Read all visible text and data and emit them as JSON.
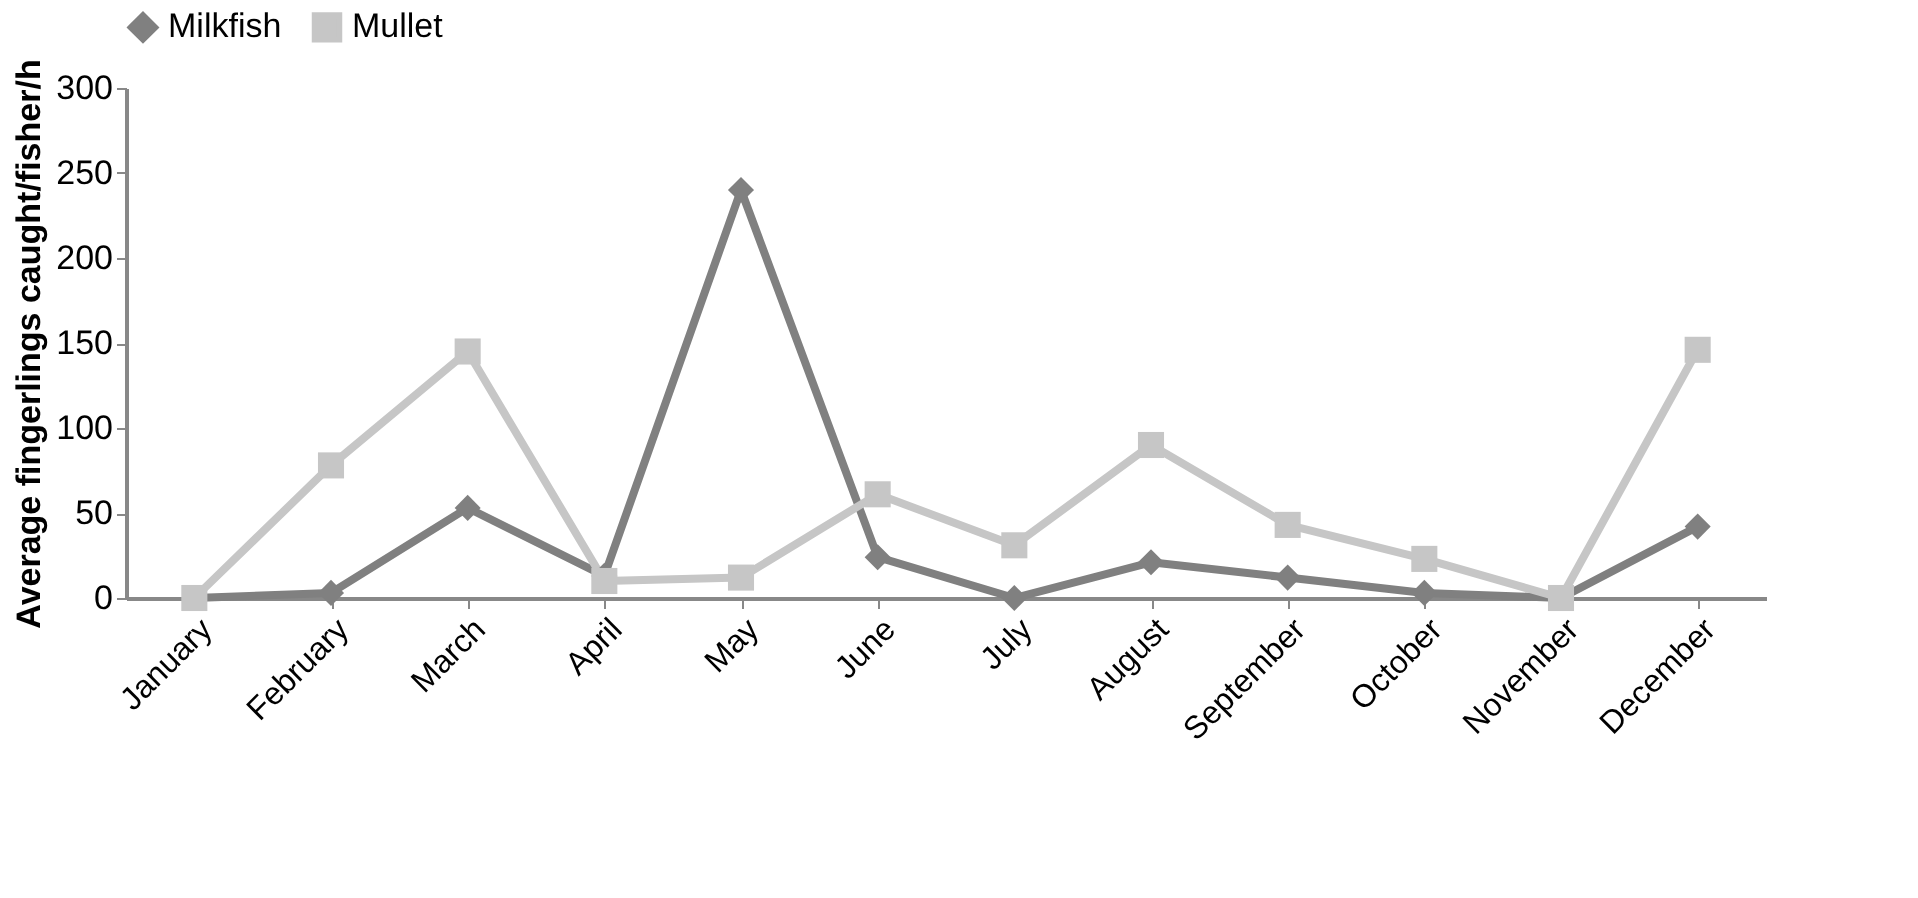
{
  "chart_data": {
    "type": "line",
    "ylabel": "Average fingerlings caught/fisher/h",
    "categories": [
      "January",
      "February",
      "March",
      "April",
      "May",
      "June",
      "July",
      "August",
      "September",
      "October",
      "November",
      "December"
    ],
    "series": [
      {
        "name": "Milkfish",
        "color": "#808080",
        "marker": "diamond",
        "values": [
          0,
          3,
          53,
          13,
          240,
          24,
          0,
          21,
          12,
          3,
          0,
          42
        ]
      },
      {
        "name": "Mullet",
        "color": "#c6c6c6",
        "marker": "square",
        "values": [
          0,
          78,
          145,
          10,
          12,
          61,
          31,
          90,
          43,
          23,
          0,
          146
        ]
      }
    ],
    "ylim": [
      0,
      300
    ],
    "yticks": [
      0,
      50,
      100,
      150,
      200,
      250,
      300
    ],
    "grid": false,
    "legend": "top",
    "line_style": "solid"
  }
}
